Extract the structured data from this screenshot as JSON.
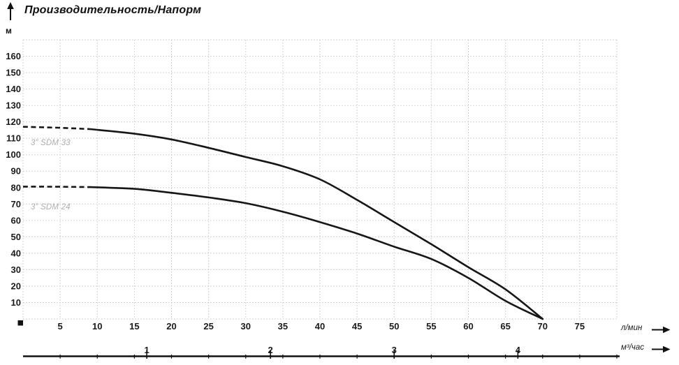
{
  "chart": {
    "title": "Производительность/Напорм",
    "y_unit": "м",
    "x_unit_primary": "л/мин",
    "x_unit_secondary": "м³/час"
  },
  "chart_data": {
    "type": "line",
    "title": "Производительность/Напорм",
    "ylabel": "м",
    "xlabel_primary": "л/мин",
    "xlabel_secondary": "м³/час",
    "xlim_lmin": [
      0,
      80
    ],
    "ylim": [
      0,
      170
    ],
    "grid": "dotted",
    "grid_step_x_lmin": 5,
    "grid_step_y_m": 10,
    "y_ticks": [
      160,
      150,
      140,
      130,
      120,
      110,
      100,
      90,
      80,
      70,
      60,
      50,
      40,
      30,
      20,
      10
    ],
    "x_ticks_lmin": [
      5,
      10,
      15,
      20,
      25,
      30,
      35,
      40,
      45,
      50,
      55,
      60,
      65,
      70,
      75
    ],
    "x_ticks_m3h": [
      1,
      2,
      3,
      4
    ],
    "lmin_per_m3h": 16.6667,
    "dash_solid_boundary_lmin": 9,
    "series": [
      {
        "name": "3” SDM 33",
        "points": [
          [
            0,
            117
          ],
          [
            5,
            116.4
          ],
          [
            9,
            115.6
          ],
          [
            15,
            112.8
          ],
          [
            20,
            109.3
          ],
          [
            25,
            104.2
          ],
          [
            30,
            98.6
          ],
          [
            35,
            93
          ],
          [
            40,
            85
          ],
          [
            45,
            72.5
          ],
          [
            50,
            59
          ],
          [
            55,
            45.5
          ],
          [
            60,
            31.5
          ],
          [
            65,
            18
          ],
          [
            70,
            0
          ]
        ]
      },
      {
        "name": "3” SDM 24",
        "points": [
          [
            0,
            80.6
          ],
          [
            5,
            80.5
          ],
          [
            9,
            80.3
          ],
          [
            15,
            79.2
          ],
          [
            20,
            76.8
          ],
          [
            25,
            74
          ],
          [
            30,
            70.5
          ],
          [
            35,
            65.3
          ],
          [
            40,
            59
          ],
          [
            45,
            52
          ],
          [
            50,
            44
          ],
          [
            55,
            36.5
          ],
          [
            60,
            25
          ],
          [
            65,
            11
          ],
          [
            70,
            0
          ]
        ]
      }
    ]
  },
  "colors": {
    "curve": "#161616",
    "grid": "#c9c9c9",
    "text": "#1a1a1a",
    "series_label": "#aeaeae",
    "axis_line": "#111111"
  }
}
